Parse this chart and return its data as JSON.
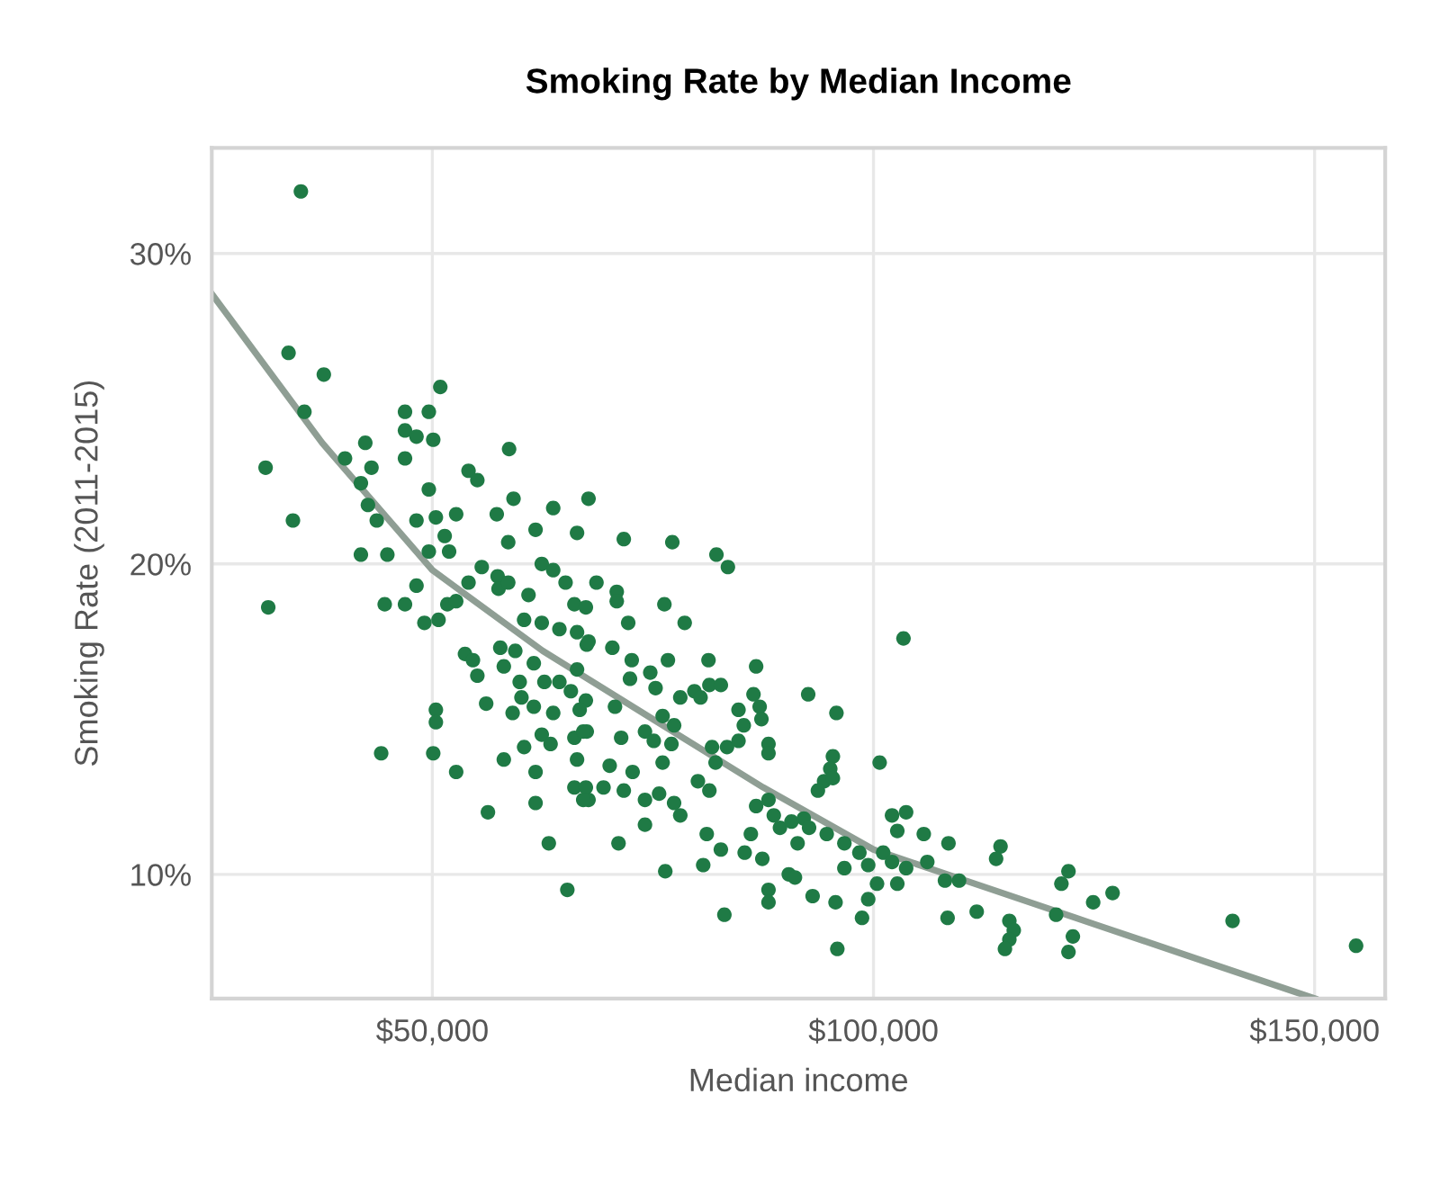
{
  "chart_data": {
    "type": "scatter",
    "title": "Smoking Rate by Median Income",
    "xlabel": "Median income",
    "ylabel": "Smoking Rate (2011-2015)",
    "xlim": [
      25000,
      158000
    ],
    "ylim": [
      6,
      33.4
    ],
    "xticks": [
      {
        "value": 50000,
        "label": "$50,000"
      },
      {
        "value": 100000,
        "label": "$100,000"
      },
      {
        "value": 150000,
        "label": "$150,000"
      }
    ],
    "yticks": [
      {
        "value": 10,
        "label": "10%"
      },
      {
        "value": 20,
        "label": "20%"
      },
      {
        "value": 30,
        "label": "30%"
      }
    ],
    "grid": true,
    "legend": false,
    "series": [
      {
        "type": "line",
        "color": "#8f9e94",
        "line_style": "solid",
        "marker": "none",
        "x": [
          25000,
          37500,
          50000,
          62500,
          75000,
          87500,
          100000,
          112500,
          125000,
          137500,
          150000
        ],
        "values": [
          28.7,
          23.9,
          19.8,
          17.2,
          15.0,
          12.8,
          10.8,
          9.6,
          8.4,
          7.2,
          6.0
        ]
      },
      {
        "color": "#1f7a45",
        "marker": "circle",
        "x": [
          35100,
          33700,
          37700,
          35500,
          50900,
          46900,
          49600,
          46900,
          48200,
          50100,
          42400,
          40100,
          43100,
          31100,
          46900,
          58700,
          54100,
          55100,
          41900,
          49600,
          59200,
          67700,
          42700,
          43700,
          34200,
          48200,
          50400,
          52700,
          57300,
          61700,
          63700,
          66400,
          51400,
          51900,
          49600,
          58600,
          41900,
          44900,
          55600,
          62400,
          63700,
          31400,
          44600,
          46900,
          48200,
          49100,
          50700,
          51700,
          52700,
          54100,
          57400,
          57500,
          58600,
          60900,
          65100,
          66100,
          67400,
          68600,
          60400,
          62400,
          64400,
          66400,
          67500,
          53700,
          54600,
          55100,
          57700,
          59400,
          58100,
          59900,
          61500,
          62700,
          64400,
          66400,
          65700,
          67400,
          56100,
          59100,
          60100,
          61500,
          63700,
          66700,
          50400,
          50400,
          62400,
          63400,
          66100,
          67500,
          44200,
          50100,
          52700,
          58100,
          60400,
          61700,
          66400,
          66100,
          67400,
          67700,
          56300,
          61700,
          63200,
          65300,
          71700,
          77200,
          82200,
          83500,
          70900,
          70900,
          76300,
          78600,
          72200,
          67700,
          70400,
          72600,
          74700,
          76700,
          81300,
          86700,
          72400,
          75300,
          78100,
          79700,
          81400,
          82700,
          80400,
          86400,
          92600,
          95800,
          87100,
          84700,
          85300,
          87300,
          76100,
          77400,
          70700,
          67100,
          71400,
          74100,
          75100,
          77100,
          81700,
          83400,
          84700,
          82100,
          88100,
          88100,
          95400,
          95100,
          100700,
          70100,
          72700,
          76100,
          69400,
          71700,
          80100,
          81400,
          74100,
          75700,
          77400,
          78100,
          67100,
          94400,
          93700,
          95400,
          74100,
          71100,
          76400,
          81100,
          82700,
          80700,
          83100,
          86700,
          88100,
          88700,
          89400,
          90700,
          92100,
          92700,
          91400,
          86100,
          87400,
          85400,
          94700,
          96700,
          98400,
          99400,
          96700,
          90400,
          91100,
          88100,
          88100,
          93100,
          95700,
          98700,
          99400,
          100400,
          102100,
          103700,
          102700,
          105700,
          108500,
          101100,
          102100,
          103700,
          106100,
          102700,
          108100,
          109700,
          108400,
          111700,
          95900,
          103400,
          114400,
          113900,
          122100,
          121300,
          127100,
          124900,
          115400,
          115900,
          115400,
          114900,
          120700,
          122600,
          122100,
          140700,
          154700
        ],
        "values": [
          32.0,
          26.8,
          26.1,
          24.9,
          25.7,
          24.9,
          24.9,
          24.3,
          24.1,
          24.0,
          23.9,
          23.4,
          23.1,
          23.1,
          23.4,
          23.7,
          23.0,
          22.7,
          22.6,
          22.4,
          22.1,
          22.1,
          21.9,
          21.4,
          21.4,
          21.4,
          21.5,
          21.6,
          21.6,
          21.1,
          21.8,
          21.0,
          20.9,
          20.4,
          20.4,
          20.7,
          20.3,
          20.3,
          19.9,
          20.0,
          19.8,
          18.6,
          18.7,
          18.7,
          19.3,
          18.1,
          18.2,
          18.7,
          18.8,
          19.4,
          19.6,
          19.2,
          19.4,
          19.0,
          19.4,
          18.7,
          18.6,
          19.4,
          18.2,
          18.1,
          17.9,
          17.8,
          17.4,
          17.1,
          16.9,
          16.4,
          17.3,
          17.2,
          16.7,
          16.2,
          16.8,
          16.2,
          16.2,
          16.6,
          15.9,
          15.6,
          15.5,
          15.2,
          15.7,
          15.4,
          15.2,
          15.3,
          15.3,
          14.9,
          14.5,
          14.2,
          14.4,
          14.6,
          13.9,
          13.9,
          13.3,
          13.7,
          14.1,
          13.3,
          13.7,
          12.8,
          12.8,
          12.4,
          12.0,
          12.3,
          11.0,
          9.5,
          20.8,
          20.7,
          20.3,
          19.9,
          19.1,
          18.8,
          18.7,
          18.1,
          18.1,
          17.5,
          17.3,
          16.9,
          16.5,
          16.9,
          16.9,
          16.7,
          16.3,
          16.0,
          15.7,
          15.9,
          16.1,
          16.1,
          15.7,
          15.8,
          15.8,
          15.2,
          15.4,
          15.3,
          14.8,
          15.0,
          15.1,
          14.8,
          15.4,
          14.6,
          14.4,
          14.6,
          14.3,
          14.2,
          14.1,
          14.1,
          14.3,
          13.6,
          14.2,
          13.9,
          13.8,
          13.4,
          13.6,
          13.5,
          13.3,
          13.6,
          12.8,
          12.7,
          13.0,
          12.7,
          12.4,
          12.6,
          12.3,
          11.9,
          12.4,
          13.0,
          12.7,
          13.1,
          11.6,
          11.0,
          10.1,
          11.3,
          10.8,
          10.3,
          8.7,
          12.2,
          12.4,
          11.9,
          11.5,
          11.7,
          11.8,
          11.5,
          11.0,
          11.3,
          10.5,
          10.7,
          11.3,
          11.0,
          10.7,
          10.3,
          10.2,
          10.0,
          9.9,
          9.5,
          9.1,
          9.3,
          9.1,
          8.6,
          9.2,
          9.7,
          11.9,
          12.0,
          11.4,
          11.3,
          11.0,
          10.7,
          10.4,
          10.2,
          10.4,
          9.7,
          9.8,
          9.8,
          8.6,
          8.8,
          7.6,
          17.6,
          10.9,
          10.5,
          10.1,
          9.7,
          9.4,
          9.1,
          8.5,
          8.2,
          7.9,
          7.6,
          8.7,
          8.0,
          7.5,
          8.5,
          7.7
        ]
      }
    ]
  }
}
